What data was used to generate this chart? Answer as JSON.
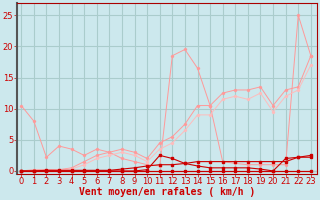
{
  "xlabel": "Vent moyen/en rafales ( km/h )",
  "background_color": "#cce8ed",
  "grid_color": "#aacccc",
  "x_ticks": [
    0,
    1,
    2,
    3,
    4,
    5,
    6,
    7,
    8,
    9,
    10,
    11,
    12,
    13,
    14,
    15,
    16,
    17,
    18,
    19,
    20,
    21,
    22,
    23
  ],
  "y_ticks": [
    0,
    5,
    10,
    15,
    20,
    25
  ],
  "ylim": [
    -0.5,
    27
  ],
  "xlim": [
    -0.3,
    23.5
  ],
  "line1_x": [
    0,
    1,
    2,
    3,
    4,
    5,
    6,
    7,
    8,
    9,
    10,
    11,
    12,
    13,
    14,
    15,
    16,
    17,
    18,
    19,
    20,
    21,
    22,
    23
  ],
  "line1_y": [
    10.5,
    8.0,
    2.2,
    4.0,
    3.5,
    2.5,
    3.5,
    3.0,
    2.0,
    1.5,
    1.0,
    0.8,
    18.5,
    19.5,
    16.5,
    10.5,
    1.5,
    1.2,
    1.0,
    1.0,
    1.0,
    1.0,
    25.0,
    18.5
  ],
  "line1_color": "#ff9999",
  "line2_x": [
    0,
    1,
    2,
    3,
    4,
    5,
    6,
    7,
    8,
    9,
    10,
    11,
    12,
    13,
    14,
    15,
    16,
    17,
    18,
    19,
    20,
    21,
    22,
    23
  ],
  "line2_y": [
    0.0,
    0.2,
    0.2,
    0.2,
    0.5,
    1.5,
    2.5,
    3.0,
    3.5,
    3.0,
    2.0,
    4.5,
    5.5,
    7.5,
    10.5,
    10.5,
    12.5,
    13.0,
    13.0,
    13.5,
    10.5,
    13.0,
    13.5,
    18.5
  ],
  "line2_color": "#ff9999",
  "line3_x": [
    0,
    1,
    2,
    3,
    4,
    5,
    6,
    7,
    8,
    9,
    10,
    11,
    12,
    13,
    14,
    15,
    16,
    17,
    18,
    19,
    20,
    21,
    22,
    23
  ],
  "line3_y": [
    0.0,
    0.0,
    0.0,
    0.2,
    0.3,
    1.0,
    2.0,
    2.5,
    3.0,
    2.5,
    1.5,
    3.5,
    4.5,
    6.5,
    9.0,
    9.0,
    11.5,
    12.0,
    11.5,
    12.5,
    9.5,
    12.0,
    13.0,
    17.0
  ],
  "line3_color": "#ffbbbb",
  "line4_x": [
    0,
    1,
    2,
    3,
    4,
    5,
    6,
    7,
    8,
    9,
    10,
    11,
    12,
    13,
    14,
    15,
    16,
    17,
    18,
    19,
    20,
    21,
    22,
    23
  ],
  "line4_y": [
    0.0,
    0.0,
    0.1,
    0.1,
    0.1,
    0.1,
    0.1,
    0.1,
    0.3,
    0.5,
    0.8,
    1.0,
    1.0,
    1.2,
    1.5,
    1.5,
    1.5,
    1.5,
    1.5,
    1.5,
    1.5,
    1.5,
    2.2,
    2.5
  ],
  "line4_color": "#cc0000",
  "line5_x": [
    0,
    1,
    2,
    3,
    4,
    5,
    6,
    7,
    8,
    9,
    10,
    11,
    12,
    13,
    14,
    15,
    16,
    17,
    18,
    19,
    20,
    21,
    22,
    23
  ],
  "line5_y": [
    0.0,
    0.0,
    0.0,
    0.0,
    0.0,
    0.0,
    0.0,
    0.0,
    0.0,
    0.0,
    0.2,
    2.5,
    2.0,
    1.2,
    0.8,
    0.5,
    0.5,
    0.5,
    0.5,
    0.3,
    0.0,
    2.0,
    2.2,
    2.2
  ],
  "line5_color": "#cc0000",
  "line6_x": [
    0,
    1,
    2,
    3,
    4,
    5,
    6,
    7,
    8,
    9,
    10,
    11,
    12,
    13,
    14,
    15,
    16,
    17,
    18,
    19,
    20,
    21,
    22,
    23
  ],
  "line6_y": [
    0.0,
    0.0,
    0.0,
    0.0,
    0.0,
    0.0,
    0.0,
    0.0,
    0.0,
    0.0,
    0.0,
    0.0,
    0.0,
    0.0,
    0.0,
    0.0,
    0.0,
    0.0,
    0.0,
    0.0,
    0.0,
    0.0,
    0.0,
    0.0
  ],
  "line6_color": "#cc0000",
  "xlabel_color": "#cc0000",
  "xlabel_fontsize": 7.0,
  "tick_fontsize": 6.0,
  "tick_color": "#cc0000"
}
